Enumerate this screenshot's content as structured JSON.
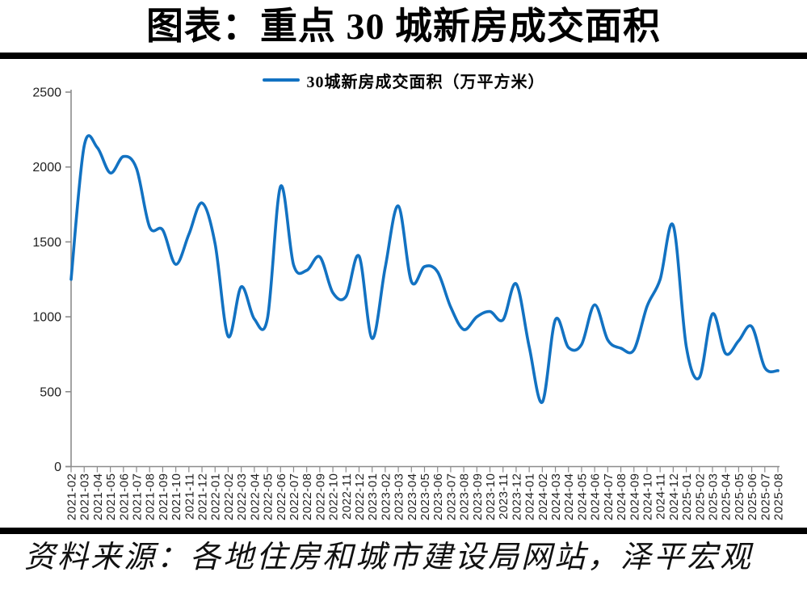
{
  "title": "图表：重点 30 城新房成交面积",
  "legend": {
    "label": "30城新房成交面积（万平方米）"
  },
  "source": "资料来源：各地住房和城市建设局网站，泽平宏观",
  "chart_data": {
    "type": "line",
    "title": "图表：重点 30 城新房成交面积",
    "xlabel": "",
    "ylabel": "",
    "ylim": [
      0,
      2500
    ],
    "yticks": [
      0,
      500,
      1000,
      1500,
      2000,
      2500
    ],
    "grid": false,
    "smooth": true,
    "legend_position": "top",
    "line_color": "#1272C2",
    "axis_color": "#8c8c8c",
    "label_color": "#1f1f1f",
    "x": [
      "2021-02",
      "2021-03",
      "2021-04",
      "2021-05",
      "2021-06",
      "2021-07",
      "2021-08",
      "2021-09",
      "2021-10",
      "2021-11",
      "2021-12",
      "2022-01",
      "2022-02",
      "2022-03",
      "2022-04",
      "2022-05",
      "2022-06",
      "2022-07",
      "2022-08",
      "2022-09",
      "2022-10",
      "2022-11",
      "2022-12",
      "2023-01",
      "2023-02",
      "2023-03",
      "2023-04",
      "2023-05",
      "2023-06",
      "2023-07",
      "2023-08",
      "2023-09",
      "2023-10",
      "2023-11",
      "2023-12",
      "2024-01",
      "2024-02",
      "2024-03",
      "2024-04",
      "2024-05",
      "2024-06",
      "2024-07",
      "2024-08",
      "2024-09",
      "2024-10",
      "2024-11",
      "2024-12",
      "2025-01",
      "2025-02",
      "2025-03",
      "2025-04",
      "2025-05",
      "2025-06",
      "2025-07",
      "2025-08"
    ],
    "series": [
      {
        "name": "30城新房成交面积（万平方米）",
        "values": [
          1250,
          2140,
          2130,
          1960,
          2070,
          1990,
          1600,
          1580,
          1350,
          1550,
          1760,
          1490,
          870,
          1200,
          985,
          990,
          1870,
          1345,
          1310,
          1400,
          1160,
          1135,
          1405,
          855,
          1330,
          1740,
          1235,
          1335,
          1300,
          1065,
          915,
          1000,
          1035,
          980,
          1220,
          800,
          430,
          980,
          795,
          815,
          1080,
          845,
          790,
          780,
          1070,
          1250,
          1610,
          800,
          595,
          1020,
          755,
          840,
          935,
          660,
          640
        ]
      }
    ]
  }
}
